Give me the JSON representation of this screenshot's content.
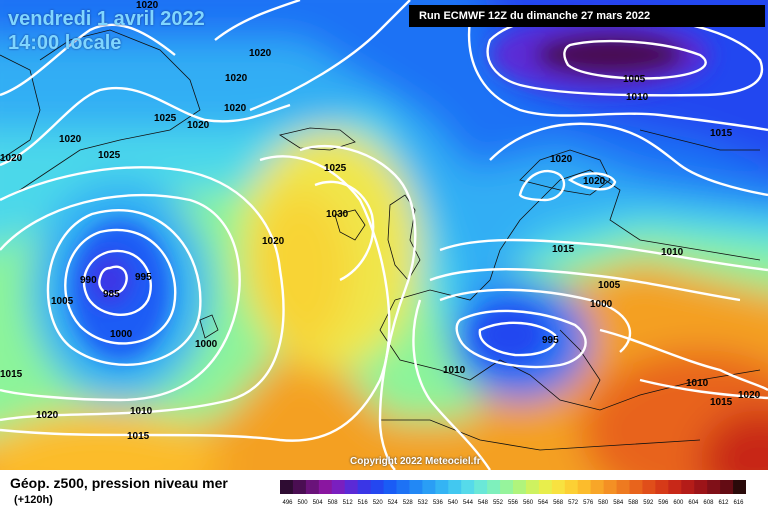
{
  "map": {
    "date": "vendredi 1 avril 2022",
    "time": "14:00 locale",
    "run": "Run ECMWF 12Z du dimanche 27 mars 2022",
    "copyright": "Copyright 2022 Meteociel.fr",
    "title": "Géop. z500, pression niveau mer",
    "subtitle": "(+120h)",
    "contour_labels": [
      "1020",
      "1020",
      "1020",
      "1020",
      "1025",
      "1020",
      "1020",
      "1025",
      "1020",
      "1025",
      "1030",
      "1020",
      "990",
      "995",
      "985",
      "1005",
      "1000",
      "1000",
      "1015",
      "1020",
      "1010",
      "1015",
      "1005",
      "1010",
      "1015",
      "1020",
      "1020",
      "1015",
      "1010",
      "1005",
      "1000",
      "995",
      "1010",
      "1010",
      "1015",
      "1020"
    ],
    "scale": {
      "colors": [
        "#2e0c32",
        "#4a0e52",
        "#6a137a",
        "#8a16a0",
        "#7a1fbf",
        "#5b2ad6",
        "#3a36e6",
        "#2447f0",
        "#1a5cf5",
        "#1d72f5",
        "#2288f5",
        "#2a9ef5",
        "#34b4f4",
        "#42c8f0",
        "#56daea",
        "#6ae8d8",
        "#7ef0bc",
        "#96f49c",
        "#b0f47c",
        "#cef260",
        "#e8ee4c",
        "#f8e240",
        "#fcd034",
        "#fcbc2c",
        "#f8a628",
        "#f49024",
        "#ee7a20",
        "#e8641c",
        "#e04e1a",
        "#d63a18",
        "#c82818",
        "#b41c18",
        "#9c1418",
        "#801018",
        "#640c14",
        "#2a0a0a"
      ],
      "labels": [
        "496",
        "500",
        "504",
        "508",
        "512",
        "516",
        "520",
        "524",
        "528",
        "532",
        "536",
        "540",
        "544",
        "548",
        "552",
        "556",
        "560",
        "564",
        "568",
        "572",
        "576",
        "580",
        "584",
        "588",
        "592",
        "596",
        "600",
        "604",
        "608",
        "612",
        "616"
      ]
    }
  }
}
